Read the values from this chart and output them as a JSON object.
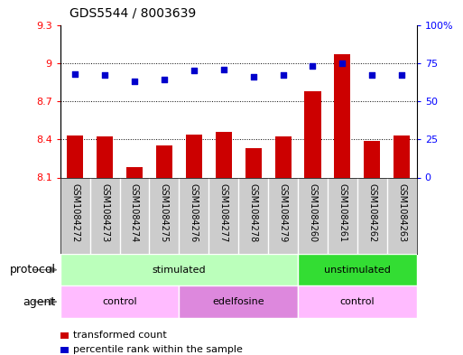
{
  "title": "GDS5544 / 8003639",
  "samples": [
    "GSM1084272",
    "GSM1084273",
    "GSM1084274",
    "GSM1084275",
    "GSM1084276",
    "GSM1084277",
    "GSM1084278",
    "GSM1084279",
    "GSM1084260",
    "GSM1084261",
    "GSM1084262",
    "GSM1084263"
  ],
  "bar_values": [
    8.43,
    8.42,
    8.18,
    8.35,
    8.44,
    8.46,
    8.33,
    8.42,
    8.78,
    9.07,
    8.39,
    8.43
  ],
  "scatter_values": [
    68,
    67,
    63,
    64,
    70,
    71,
    66,
    67,
    73,
    75,
    67,
    67
  ],
  "bar_color": "#cc0000",
  "scatter_color": "#0000cc",
  "ylim_left": [
    8.1,
    9.3
  ],
  "ylim_right": [
    0,
    100
  ],
  "yticks_left": [
    8.1,
    8.4,
    8.7,
    9.0,
    9.3
  ],
  "ytick_labels_left": [
    "8.1",
    "8.4",
    "8.7",
    "9",
    "9.3"
  ],
  "yticks_right": [
    0,
    25,
    50,
    75,
    100
  ],
  "ytick_labels_right": [
    "0",
    "25",
    "50",
    "75",
    "100%"
  ],
  "grid_yticks": [
    8.4,
    8.7,
    9.0
  ],
  "protocol_groups": [
    {
      "label": "stimulated",
      "start": 0,
      "end": 8,
      "color": "#bbffbb"
    },
    {
      "label": "unstimulated",
      "start": 8,
      "end": 12,
      "color": "#33dd33"
    }
  ],
  "agent_groups": [
    {
      "label": "control",
      "start": 0,
      "end": 4,
      "color": "#ffbbff"
    },
    {
      "label": "edelfosine",
      "start": 4,
      "end": 8,
      "color": "#dd88dd"
    },
    {
      "label": "control",
      "start": 8,
      "end": 12,
      "color": "#ffbbff"
    }
  ],
  "legend_bar_label": "transformed count",
  "legend_scatter_label": "percentile rank within the sample",
  "protocol_label": "protocol",
  "agent_label": "agent",
  "bar_width": 0.55,
  "background_color": "#ffffff",
  "sample_bg_color": "#cccccc",
  "sample_fontsize": 7,
  "label_fontsize": 9,
  "row_fontsize": 8,
  "title_fontsize": 10
}
